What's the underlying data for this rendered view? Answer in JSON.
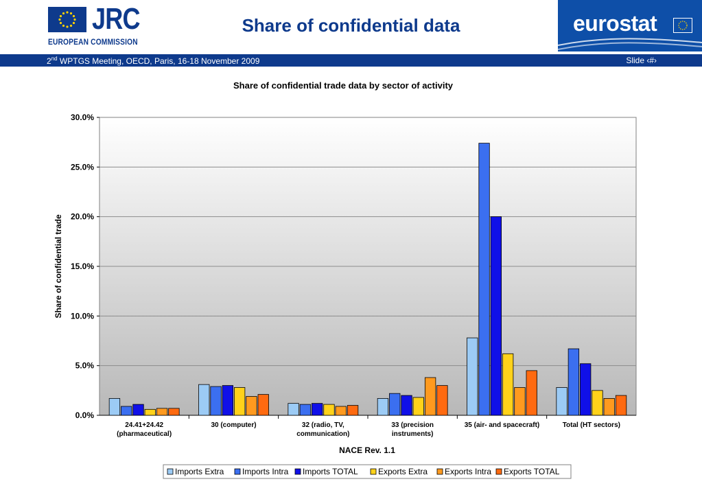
{
  "header": {
    "jrc_logo_text": "JRC",
    "commission_text": "EUROPEAN COMMISSION",
    "title": "Share of confidential data",
    "eurostat_text": "eurostat"
  },
  "band": {
    "meeting_prefix": "2",
    "meeting_sup": "nd",
    "meeting_rest": " WPTGS Meeting, OECD, Paris, 16-18 November 2009",
    "slide_label": "Slide ‹#›"
  },
  "colors": {
    "brand_blue": "#0e3a8c",
    "eurostat_blue": "#0e4fa8"
  },
  "chart_data": {
    "type": "bar",
    "title": "Share of confidential trade data by sector of activity",
    "xlabel": "NACE Rev. 1.1",
    "ylabel": "Share of confidential trade",
    "ylim": [
      0,
      30
    ],
    "yticks": [
      "0.0%",
      "5.0%",
      "10.0%",
      "15.0%",
      "20.0%",
      "25.0%",
      "30.0%"
    ],
    "categories": [
      [
        "24.41+24.42",
        "(pharmaceutical)"
      ],
      [
        "30 (computer)"
      ],
      [
        "32 (radio, TV,",
        "communication)"
      ],
      [
        "33 (precision",
        "instruments)"
      ],
      [
        "35 (air- and spacecraft)"
      ],
      [
        "Total (HT sectors)"
      ]
    ],
    "series": [
      {
        "name": "Imports Extra",
        "color": "#9ccbf5",
        "values": [
          1.7,
          3.1,
          1.2,
          1.7,
          7.8,
          2.8
        ]
      },
      {
        "name": "Imports Intra",
        "color": "#3b6ff0",
        "values": [
          0.9,
          2.9,
          1.1,
          2.2,
          27.4,
          6.7
        ]
      },
      {
        "name": "Imports TOTAL",
        "color": "#1010e8",
        "values": [
          1.1,
          3.0,
          1.2,
          2.0,
          20.0,
          5.2
        ]
      },
      {
        "name": "Exports Extra",
        "color": "#ffd21a",
        "values": [
          0.6,
          2.8,
          1.1,
          1.8,
          6.2,
          2.5
        ]
      },
      {
        "name": "Exports Intra",
        "color": "#ff9a1f",
        "values": [
          0.7,
          1.9,
          0.9,
          3.8,
          2.8,
          1.7
        ]
      },
      {
        "name": "Exports TOTAL",
        "color": "#ff6a10",
        "values": [
          0.7,
          2.1,
          1.0,
          3.0,
          4.5,
          2.0
        ]
      }
    ],
    "grid": true,
    "legend": "bottom"
  }
}
